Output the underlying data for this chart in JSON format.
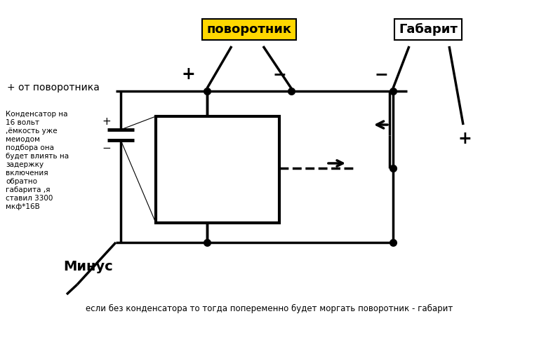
{
  "bg_color": "#ffffff",
  "title_povorotnik": "поворотник",
  "title_gabaret": "Габарит",
  "label_plus_from": "+ от поворотника",
  "label_minus": "Минус",
  "label_condenser": "Конденсатор на\n16 вольт\n,ёмкость уже\nмеиодом\nподбора она\nбудет влиять на\nзадержку\nвключения\nобратно\nгабарита ,я\nставил 3300\nмкф*16В",
  "label_bottom": "если без конденсатора то тогда попеременно будет моргать поворотник - габарит",
  "line_color": "#000000",
  "line_width": 2.5,
  "dot_size": 7
}
